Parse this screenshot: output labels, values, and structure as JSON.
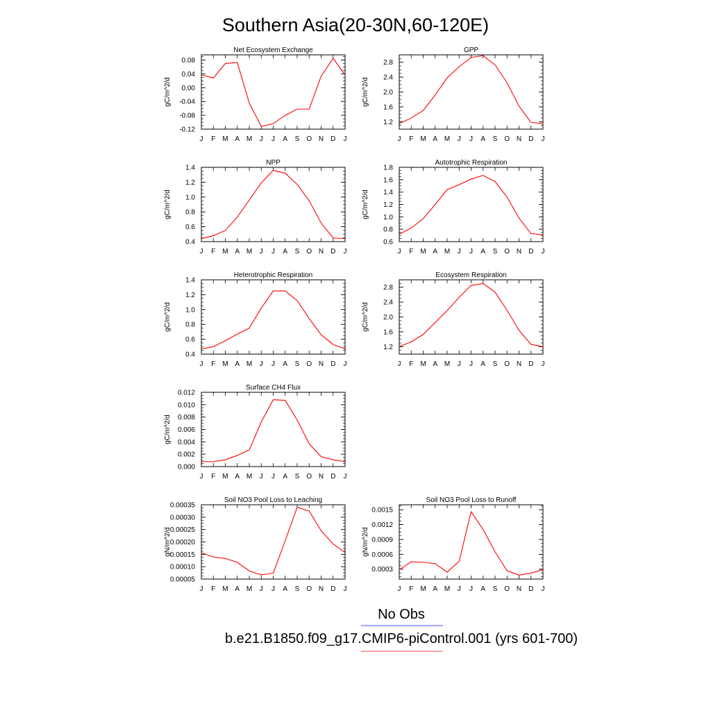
{
  "title": "Southern Asia(20-30N,60-120E)",
  "months": [
    "J",
    "F",
    "M",
    "A",
    "M",
    "J",
    "J",
    "A",
    "S",
    "O",
    "N",
    "D",
    "J"
  ],
  "line_color": "#ff0000",
  "legend": {
    "obs_label": "No Obs",
    "obs_color": "#6f6fff",
    "model_label": "b.e21.B1850.f09_g17.CMIP6-piControl.001 (yrs 601-700)",
    "model_color": "#ff6f6f"
  },
  "chart_data": [
    {
      "type": "line",
      "title": "Net Ecosystem Exchange",
      "ylabel": "gC/m^2/d",
      "ylim": [
        -0.12,
        0.095
      ],
      "yticks": [
        "0.08",
        "0.04",
        "0.00",
        "-0.04",
        "-0.08",
        "-0.12"
      ],
      "ytick_values": [
        0.08,
        0.04,
        0.0,
        -0.04,
        -0.08,
        -0.12
      ],
      "series": [
        {
          "values": [
            0.037,
            0.028,
            0.07,
            0.073,
            -0.045,
            -0.112,
            -0.104,
            -0.08,
            -0.062,
            -0.062,
            0.033,
            0.085,
            0.037
          ]
        }
      ]
    },
    {
      "type": "line",
      "title": "GPP",
      "ylabel": "gC/m^2/d",
      "ylim": [
        1.0,
        3.0
      ],
      "yticks": [
        "2.8",
        "2.4",
        "2.0",
        "1.6",
        "1.2"
      ],
      "ytick_values": [
        2.8,
        2.4,
        2.0,
        1.6,
        1.2
      ],
      "series": [
        {
          "values": [
            1.15,
            1.3,
            1.5,
            1.92,
            2.38,
            2.68,
            2.93,
            2.98,
            2.73,
            2.25,
            1.62,
            1.18,
            1.15
          ]
        }
      ]
    },
    {
      "type": "line",
      "title": "NPP",
      "ylabel": "gC/m^2/d",
      "ylim": [
        0.4,
        1.4
      ],
      "yticks": [
        "1.4",
        "1.2",
        "1.0",
        "0.8",
        "0.6",
        "0.4"
      ],
      "ytick_values": [
        1.4,
        1.2,
        1.0,
        0.8,
        0.6,
        0.4
      ],
      "series": [
        {
          "values": [
            0.44,
            0.48,
            0.55,
            0.73,
            0.96,
            1.19,
            1.36,
            1.32,
            1.17,
            0.95,
            0.65,
            0.45,
            0.44
          ]
        }
      ]
    },
    {
      "type": "line",
      "title": "Autotrophic Respiration",
      "ylabel": "gC/m^2/d",
      "ylim": [
        0.6,
        1.8
      ],
      "yticks": [
        "1.8",
        "1.6",
        "1.4",
        "1.2",
        "1.0",
        "0.8",
        "0.6"
      ],
      "ytick_values": [
        1.8,
        1.6,
        1.4,
        1.2,
        1.0,
        0.8,
        0.6
      ],
      "series": [
        {
          "values": [
            0.72,
            0.82,
            0.97,
            1.2,
            1.44,
            1.52,
            1.61,
            1.67,
            1.57,
            1.32,
            0.98,
            0.73,
            0.71
          ]
        }
      ]
    },
    {
      "type": "line",
      "title": "Heterotrophic Respiration",
      "ylabel": "gC/m^2/d",
      "ylim": [
        0.4,
        1.4
      ],
      "yticks": [
        "1.4",
        "1.2",
        "1.0",
        "0.8",
        "0.6",
        "0.4"
      ],
      "ytick_values": [
        1.4,
        1.2,
        1.0,
        0.8,
        0.6,
        0.4
      ],
      "series": [
        {
          "values": [
            0.47,
            0.5,
            0.58,
            0.67,
            0.75,
            1.02,
            1.25,
            1.25,
            1.12,
            0.88,
            0.66,
            0.53,
            0.47
          ]
        }
      ]
    },
    {
      "type": "line",
      "title": "Ecosystem Respiration",
      "ylabel": "gC/m^2/d",
      "ylim": [
        1.0,
        3.0
      ],
      "yticks": [
        "2.8",
        "2.4",
        "2.0",
        "1.6",
        "1.2"
      ],
      "ytick_values": [
        2.8,
        2.4,
        2.0,
        1.6,
        1.2
      ],
      "series": [
        {
          "values": [
            1.2,
            1.33,
            1.53,
            1.85,
            2.17,
            2.53,
            2.85,
            2.9,
            2.67,
            2.18,
            1.64,
            1.26,
            1.2
          ]
        }
      ]
    },
    {
      "type": "line",
      "title": "Surface CH4 Flux",
      "ylabel": "gC/m^2/d",
      "ylim": [
        0.0,
        0.012
      ],
      "yticks": [
        "0.012",
        "0.010",
        "0.008",
        "0.006",
        "0.004",
        "0.002",
        "0.000"
      ],
      "ytick_values": [
        0.012,
        0.01,
        0.008,
        0.006,
        0.004,
        0.002,
        0.0
      ],
      "series": [
        {
          "values": [
            0.0008,
            0.0008,
            0.0011,
            0.0018,
            0.0027,
            0.0072,
            0.0108,
            0.0107,
            0.0075,
            0.0037,
            0.0016,
            0.0011,
            0.0008
          ]
        }
      ]
    },
    null,
    {
      "type": "line",
      "title": "Soil NO3 Pool Loss to Leaching",
      "ylabel": "gN/m^2/d",
      "ylim": [
        5e-05,
        0.00035
      ],
      "yticks": [
        "0.00035",
        "0.00030",
        "0.00025",
        "0.00020",
        "0.00015",
        "0.00010",
        "0.00005"
      ],
      "ytick_values": [
        0.00035,
        0.0003,
        0.00025,
        0.0002,
        0.00015,
        0.0001,
        5e-05
      ],
      "series": [
        {
          "values": [
            0.000157,
            0.000139,
            0.000133,
            0.000118,
            8.3e-05,
            6.7e-05,
            7.4e-05,
            0.000205,
            0.00034,
            0.000325,
            0.000245,
            0.000192,
            0.000157
          ]
        }
      ]
    },
    {
      "type": "line",
      "title": "Soil NO3 Pool Loss to Runoff",
      "ylabel": "gN/m^2/d",
      "ylim": [
        0.0001,
        0.0016
      ],
      "yticks": [
        "0.0015",
        "0.0012",
        "0.0009",
        "0.0006",
        "0.0003"
      ],
      "ytick_values": [
        0.0015,
        0.0012,
        0.0009,
        0.0006,
        0.0003
      ],
      "series": [
        {
          "values": [
            0.00029,
            0.00045,
            0.00044,
            0.00041,
            0.00024,
            0.00046,
            0.00146,
            0.0011,
            0.00065,
            0.00027,
            0.00018,
            0.00022,
            0.00029
          ]
        }
      ]
    }
  ]
}
